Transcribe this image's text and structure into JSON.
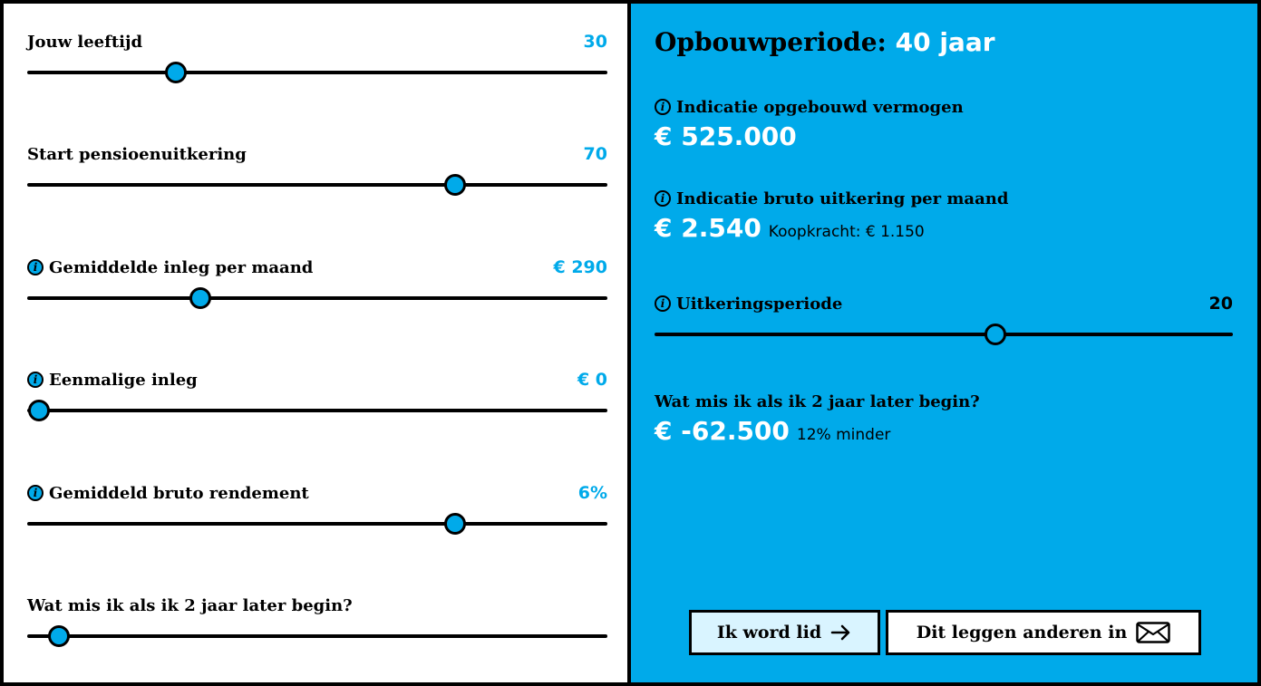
{
  "left": {
    "sliders": [
      {
        "label": "Jouw leeftijd",
        "value": "30",
        "fraction": 0.256,
        "info": false
      },
      {
        "label": "Start pensioenuitkering",
        "value": "70",
        "fraction": 0.738,
        "info": false
      },
      {
        "label": "Gemiddelde inleg per maand",
        "value": "€ 290",
        "fraction": 0.298,
        "info": true
      },
      {
        "label": "Eenmalige inleg",
        "value": "€ 0",
        "fraction": 0.021,
        "info": true
      },
      {
        "label": "Gemiddeld bruto rendement",
        "value": "6%",
        "fraction": 0.738,
        "info": true
      },
      {
        "label": "Wat mis ik als ik 2 jaar later begin?",
        "value": "",
        "fraction": 0.054,
        "info": false
      }
    ]
  },
  "right": {
    "title": "Opbouwperiode:",
    "title_value": "40 jaar",
    "vermogen_label": "Indicatie opgebouwd vermogen",
    "vermogen_value": "€ 525.000",
    "uitkering_label": "Indicatie bruto uitkering per maand",
    "uitkering_value": "€ 2.540",
    "koopkracht": "Koopkracht: € 1.150",
    "periode_label": "Uitkeringsperiode",
    "periode_value": "20",
    "periode_fraction": 0.59,
    "mis_label": "Wat mis ik als ik 2 jaar later begin?",
    "mis_value": "€ -62.500",
    "mis_note": "12% minder",
    "btn_lid": "Ik word lid",
    "btn_share": "Dit leggen anderen in"
  },
  "colors": {
    "accent": "#00aaea",
    "button_light": "#d9f4ff"
  },
  "icons": [
    "info-icon",
    "arrow-right-icon",
    "envelope-icon"
  ]
}
